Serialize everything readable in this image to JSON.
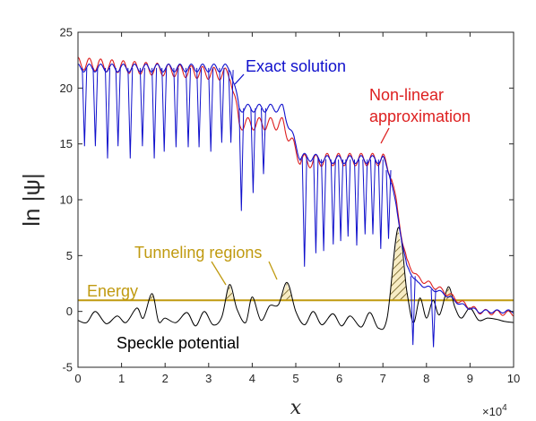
{
  "chart_data": {
    "type": "line",
    "xlabel": "x",
    "ylabel": "ln |ψ|",
    "x_multiplier": "×10",
    "x_multiplier_exp": "4",
    "xlim": [
      0,
      100000
    ],
    "ylim": [
      -5,
      25
    ],
    "xticks": [
      0,
      10000,
      20000,
      30000,
      40000,
      50000,
      60000,
      70000,
      80000,
      90000,
      100000
    ],
    "xtick_labels": [
      "0",
      "1",
      "2",
      "3",
      "4",
      "5",
      "6",
      "7",
      "8",
      "9",
      "10"
    ],
    "yticks": [
      -5,
      0,
      5,
      10,
      15,
      20,
      25
    ],
    "ytick_labels": [
      "-5",
      "0",
      "5",
      "10",
      "15",
      "20",
      "25"
    ],
    "grid": false,
    "energy": 1,
    "annotations": {
      "exact": "Exact solution",
      "nonlinear_1": "Non-linear",
      "nonlinear_2": "approximation",
      "tunneling": "Tunneling regions",
      "energy": "Energy",
      "speckle": "Speckle potential"
    },
    "colors": {
      "exact": "#1010cc",
      "nonlinear": "#dd1f1f",
      "speckle": "#000000",
      "energy": "#c09a10",
      "axes": "#262626"
    },
    "series": [
      {
        "key": "exact",
        "x": [
          0,
          35000,
          37000,
          47000,
          51000,
          53000,
          57000,
          68000,
          70000,
          71500,
          73000,
          74500,
          75500,
          78000,
          84000,
          88000,
          92000,
          100000
        ],
        "y": [
          21.8,
          21.8,
          18.2,
          18.2,
          13.8,
          13.8,
          13.6,
          13.6,
          13.6,
          12.5,
          9.5,
          6.0,
          4.0,
          2.5,
          1.6,
          0.6,
          0.0,
          0.0
        ],
        "dips": [
          [
            1500,
            14.8
          ],
          [
            4000,
            14.8
          ],
          [
            6800,
            13.7
          ],
          [
            9200,
            14.8
          ],
          [
            12000,
            13.7
          ],
          [
            14800,
            14.8
          ],
          [
            17500,
            13.7
          ],
          [
            19800,
            14.3
          ],
          [
            22500,
            14.7
          ],
          [
            25300,
            14.7
          ],
          [
            27800,
            14.7
          ],
          [
            30500,
            14.3
          ],
          [
            33000,
            15.1
          ],
          [
            35100,
            15.1
          ],
          [
            37500,
            9.0
          ],
          [
            40200,
            10.6
          ],
          [
            42600,
            12.3
          ],
          [
            52000,
            4.0
          ],
          [
            54600,
            5.2
          ],
          [
            56400,
            5.4
          ],
          [
            58600,
            6.0
          ],
          [
            60300,
            6.3
          ],
          [
            62000,
            6.7
          ],
          [
            64000,
            5.9
          ],
          [
            65900,
            6.9
          ],
          [
            67700,
            6.9
          ],
          [
            69500,
            5.6
          ],
          [
            71300,
            6.5
          ],
          [
            76900,
            -3.0
          ],
          [
            81600,
            -3.2
          ]
        ]
      },
      {
        "key": "nonlinear",
        "x": [
          0,
          35000,
          37000,
          47000,
          51000,
          53000,
          57000,
          68000,
          70000,
          71500,
          73000,
          74500,
          75500,
          78000,
          84000,
          88000,
          92000,
          100000
        ],
        "y": [
          22.2,
          21.2,
          16.8,
          16.8,
          13.6,
          13.4,
          13.6,
          13.6,
          13.6,
          12.8,
          10.0,
          6.2,
          4.5,
          3.0,
          1.8,
          0.8,
          0.0,
          -0.2
        ]
      },
      {
        "key": "speckle",
        "x": [
          0,
          2000,
          4000,
          6500,
          9000,
          11000,
          13500,
          15000,
          17000,
          18500,
          20000,
          22500,
          25000,
          27000,
          29000,
          31000,
          33000,
          34800,
          36500,
          38500,
          40000,
          42000,
          44000,
          46000,
          48000,
          50000,
          52000,
          54000,
          56000,
          58500,
          60500,
          62500,
          65000,
          67000,
          69000,
          71000,
          73500,
          75500,
          77000,
          78500,
          80000,
          81500,
          83000,
          85000,
          86500,
          88000,
          90000,
          92000,
          94000,
          96000,
          98000,
          100000
        ],
        "y": [
          -0.8,
          -1.0,
          0.0,
          -1.1,
          -0.4,
          -1.0,
          0.3,
          -0.6,
          1.6,
          -0.9,
          -0.6,
          -1.0,
          -0.1,
          -1.3,
          0.0,
          -1.2,
          -0.5,
          2.4,
          0.2,
          -1.0,
          1.3,
          -0.8,
          0.5,
          0.6,
          2.6,
          0.0,
          -1.2,
          0.0,
          -1.2,
          -0.2,
          -1.3,
          -0.4,
          -1.4,
          -0.1,
          -1.5,
          -0.5,
          7.5,
          1.8,
          -1.0,
          1.2,
          -0.6,
          1.0,
          -0.3,
          2.2,
          0.4,
          -0.6,
          0.3,
          -0.8,
          -0.6,
          -0.7,
          -0.9,
          -1.0
        ]
      }
    ]
  }
}
